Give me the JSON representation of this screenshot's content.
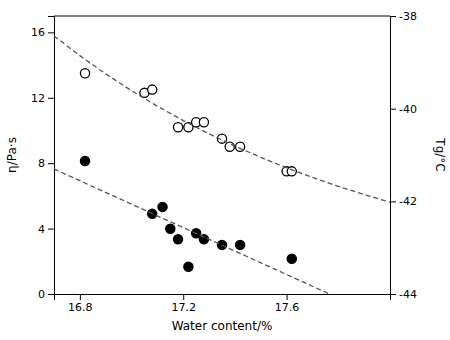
{
  "chart_data": {
    "type": "scatter",
    "xlabel": "Water content/%",
    "ylabel": "η/Pa·s",
    "y2label": "Tg/°C",
    "xlim": [
      16.7,
      18.0
    ],
    "ylim": [
      0,
      17
    ],
    "y2lim": [
      -44,
      -38
    ],
    "xticks": [
      16.8,
      17.2,
      17.6
    ],
    "yticks": [
      0,
      4,
      8,
      12,
      16
    ],
    "y2ticks": [
      -44,
      -42,
      -40,
      -38
    ],
    "series": [
      {
        "type": "scatter",
        "marker": "circle-open",
        "color": "#000000",
        "x": [
          16.82,
          17.05,
          17.08,
          17.18,
          17.22,
          17.25,
          17.28,
          17.35,
          17.38,
          17.42,
          17.6,
          17.62
        ],
        "values": [
          13.5,
          12.3,
          12.5,
          10.2,
          10.2,
          10.5,
          10.5,
          9.5,
          9.0,
          9.0,
          7.5,
          7.5
        ]
      },
      {
        "type": "line",
        "line_style": "dashed",
        "color": "#555555",
        "x": [
          16.7,
          16.8,
          16.9,
          17.0,
          17.1,
          17.2,
          17.3,
          17.4,
          17.5,
          17.6,
          17.7,
          17.8,
          17.9,
          18.0
        ],
        "values": [
          15.78,
          14.575,
          13.461,
          12.433,
          11.483,
          10.606,
          9.795,
          9.047,
          8.356,
          7.718,
          7.128,
          6.583,
          6.08,
          5.616
        ]
      },
      {
        "type": "scatter",
        "marker": "circle",
        "color": "#000000",
        "axis": "y2",
        "x": [
          16.82,
          17.08,
          17.12,
          17.15,
          17.18,
          17.22,
          17.25,
          17.28,
          17.35,
          17.42,
          17.62
        ],
        "values": [
          -41.13,
          -42.27,
          -42.12,
          -42.59,
          -42.82,
          -43.41,
          -42.69,
          -42.82,
          -42.94,
          -42.94,
          -43.24
        ]
      },
      {
        "type": "line",
        "line_style": "dashed",
        "color": "#555555",
        "axis": "y2",
        "x": [
          16.7,
          17.766
        ],
        "values": [
          -41.301,
          -43.9998
        ]
      }
    ]
  }
}
